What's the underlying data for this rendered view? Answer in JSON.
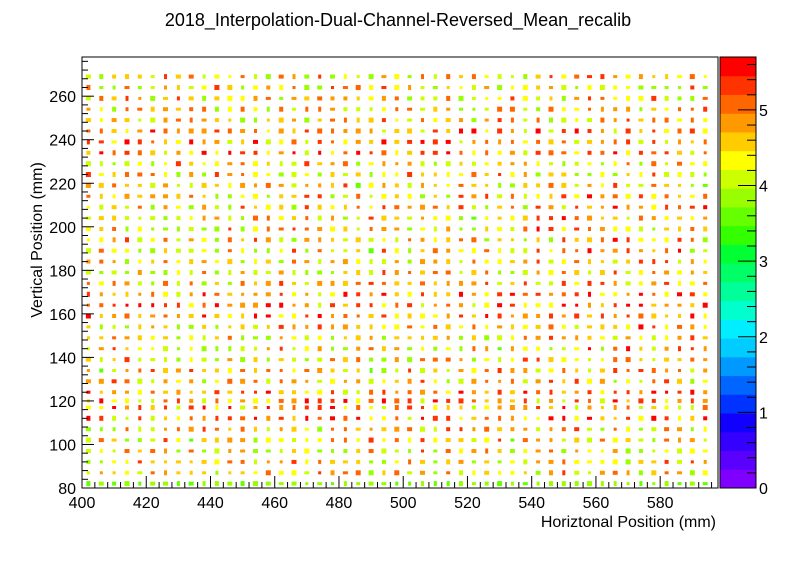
{
  "chart_data": {
    "type": "heatmap",
    "title": "2018_Interpolation-Dual-Channel-Reversed_Mean_recalib",
    "xlabel": "Horiztonal Position (mm)",
    "ylabel": "Vertical Position (mm)",
    "xlim": [
      400,
      598
    ],
    "ylim": [
      80,
      278
    ],
    "xticks": [
      400,
      420,
      440,
      460,
      480,
      500,
      520,
      540,
      560,
      580
    ],
    "yticks": [
      80,
      100,
      120,
      140,
      160,
      180,
      200,
      220,
      240,
      260
    ],
    "zlim": [
      0,
      5.7
    ],
    "zticks": [
      0,
      1,
      2,
      3,
      4,
      5
    ],
    "colorbar_colors": [
      "#7f00ff",
      "#5a00ff",
      "#3600ff",
      "#1200ff",
      "#0033ff",
      "#0066ff",
      "#0099ff",
      "#00ccff",
      "#00eeff",
      "#00ffcc",
      "#00ff99",
      "#00ff66",
      "#00ff33",
      "#33ff00",
      "#66ff00",
      "#99ff00",
      "#ccff00",
      "#ffff00",
      "#ffcc00",
      "#ff9900",
      "#ff6600",
      "#ff3300",
      "#ff0000"
    ],
    "grid": false,
    "legend": "colorbar-right",
    "x_bins": [
      402,
      406,
      410,
      414,
      418,
      422,
      426,
      430,
      434,
      438,
      442,
      446,
      450,
      454,
      458,
      462,
      466,
      470,
      474,
      478,
      482,
      486,
      490,
      494,
      498,
      502,
      506,
      510,
      514,
      518,
      522,
      526,
      530,
      534,
      538,
      542,
      546,
      550,
      554,
      558,
      562,
      566,
      570,
      574,
      578,
      582,
      586,
      590,
      594
    ],
    "y_bins": [
      82,
      87,
      92,
      97,
      102,
      107,
      112,
      117,
      120,
      124,
      129,
      134,
      139,
      144,
      149,
      154,
      159,
      164,
      169,
      174,
      179,
      184,
      189,
      194,
      199,
      204,
      209,
      214,
      219,
      224,
      229,
      234,
      239,
      244,
      249,
      254,
      259,
      264,
      269
    ],
    "z_model": {
      "base": 4.5,
      "bottom_row_value": 3.6,
      "hot_bands_y": [
        118,
        163,
        240
      ],
      "hot_region_x": [
        540,
        595
      ]
    }
  }
}
